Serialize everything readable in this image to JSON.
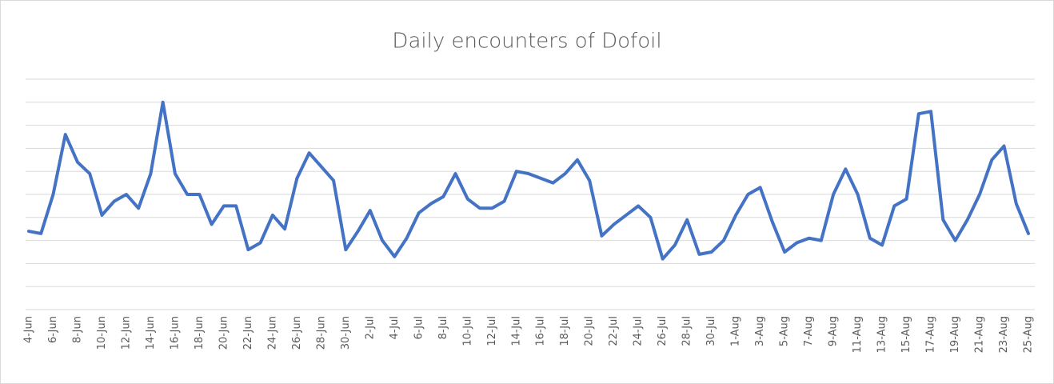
{
  "chart_data": {
    "type": "line",
    "title": "Daily encounters of Dofoil",
    "categories": [
      "4-Jun",
      null,
      "6-Jun",
      null,
      "8-Jun",
      null,
      "10-Jun",
      null,
      "12-Jun",
      null,
      "14-Jun",
      null,
      "16-Jun",
      null,
      "18-Jun",
      null,
      "20-Jun",
      null,
      "22-Jun",
      null,
      "24-Jun",
      null,
      "26-Jun",
      null,
      "28-Jun",
      null,
      "30-Jun",
      null,
      "2-Jul",
      null,
      "4-Jul",
      null,
      "6-Jul",
      null,
      "8-Jul",
      null,
      "10-Jul",
      null,
      "12-Jul",
      null,
      "14-Jul",
      null,
      "16-Jul",
      null,
      "18-Jul",
      null,
      "20-Jul",
      null,
      "22-Jul",
      null,
      "24-Jul",
      null,
      "26-Jul",
      null,
      "28-Jul",
      null,
      "30-Jul",
      null,
      "1-Aug",
      null,
      "3-Aug",
      null,
      "5-Aug",
      null,
      "7-Aug",
      null,
      "9-Aug",
      null,
      "11-Aug",
      null,
      "13-Aug",
      null,
      "15-Aug",
      null,
      "17-Aug",
      null,
      "19-Aug",
      null,
      "21-Aug",
      null,
      "23-Aug",
      null,
      "25-Aug"
    ],
    "series": [
      {
        "color": "#4472c4",
        "values": [
          3.4,
          3.3,
          5.0,
          7.6,
          6.4,
          5.9,
          4.1,
          4.7,
          5.0,
          4.4,
          5.9,
          9.0,
          5.9,
          5.0,
          5.0,
          3.7,
          4.5,
          4.5,
          2.6,
          2.9,
          4.1,
          3.5,
          5.7,
          6.8,
          6.2,
          5.6,
          2.6,
          3.4,
          4.3,
          3.0,
          2.3,
          3.1,
          4.2,
          4.6,
          4.9,
          5.9,
          4.8,
          4.4,
          4.4,
          4.7,
          6.0,
          5.9,
          5.7,
          5.5,
          5.9,
          6.5,
          5.6,
          3.2,
          3.7,
          4.1,
          4.5,
          4.0,
          2.2,
          2.8,
          3.9,
          2.4,
          2.5,
          3.0,
          4.1,
          5.0,
          5.3,
          3.8,
          2.5,
          2.9,
          3.1,
          3.0,
          5.0,
          6.1,
          5.0,
          3.1,
          2.8,
          4.5,
          4.8,
          8.5,
          8.6,
          3.9,
          3.0,
          3.9,
          5.0,
          6.5,
          7.1,
          4.6,
          3.3
        ]
      }
    ],
    "ylim": [
      0,
      10
    ],
    "yticks": [
      0,
      1,
      2,
      3,
      4,
      5,
      6,
      7,
      8,
      9,
      10
    ],
    "grid": true
  }
}
